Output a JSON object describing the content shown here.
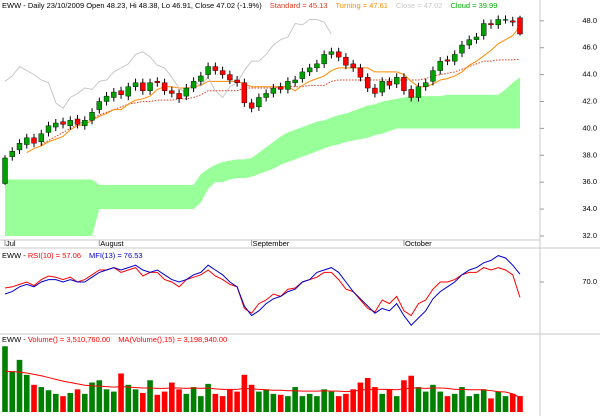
{
  "chart_data": [
    {
      "type": "candlestick",
      "title": "EWW - Daily 23/10/2009 Open 48.23, Hi 48.38, Lo 46.91, Close 47.02 (-1.9%)",
      "categories": [
        "Jul",
        null,
        null,
        null,
        null,
        null,
        null,
        null,
        null,
        null,
        null,
        null,
        null,
        "August",
        null,
        null,
        null,
        null,
        null,
        null,
        null,
        null,
        null,
        null,
        null,
        null,
        null,
        null,
        null,
        null,
        null,
        null,
        null,
        null,
        "September",
        null,
        null,
        null,
        null,
        null,
        null,
        null,
        null,
        null,
        null,
        null,
        null,
        null,
        null,
        null,
        null,
        null,
        null,
        null,
        null,
        "October",
        null,
        null,
        null,
        null,
        null,
        null,
        null,
        null,
        null,
        null,
        null,
        null,
        null,
        null,
        null,
        null
      ],
      "open": [
        35.9,
        37.9,
        38.4,
        38.8,
        39.3,
        39.0,
        39.7,
        40.1,
        40.5,
        40.2,
        40.7,
        40.2,
        40.6,
        41.4,
        42.0,
        42.3,
        42.8,
        42.4,
        43.1,
        43.4,
        42.8,
        43.5,
        43.4,
        42.8,
        42.6,
        42.4,
        43.0,
        43.5,
        44.0,
        44.6,
        44.3,
        44.0,
        43.6,
        43.4,
        41.9,
        41.6,
        42.3,
        42.6,
        43.1,
        42.9,
        43.4,
        43.7,
        44.2,
        44.5,
        44.8,
        45.5,
        45.7,
        45.3,
        44.8,
        44.5,
        43.8,
        43.0,
        42.7,
        43.5,
        43.3,
        43.8,
        42.9,
        42.3,
        43.1,
        43.5,
        44.3,
        45.1,
        45.0,
        45.6,
        46.2,
        46.6,
        46.9,
        47.8,
        47.7,
        48.1,
        48.0,
        48.23
      ],
      "high": [
        38.0,
        38.6,
        39.2,
        39.6,
        39.6,
        39.9,
        40.5,
        40.7,
        40.8,
        40.9,
        41.0,
        40.9,
        41.5,
        42.3,
        42.7,
        43.0,
        43.1,
        43.4,
        43.7,
        43.7,
        43.7,
        43.8,
        43.7,
        43.1,
        42.9,
        43.3,
        43.8,
        44.2,
        44.9,
        44.9,
        44.6,
        44.3,
        43.9,
        43.7,
        42.2,
        42.6,
        42.9,
        43.3,
        43.4,
        43.8,
        43.9,
        44.5,
        44.8,
        45.1,
        45.8,
        46.0,
        46.0,
        45.6,
        45.1,
        44.8,
        44.1,
        43.3,
        43.8,
        43.8,
        44.1,
        44.1,
        43.2,
        43.4,
        43.7,
        44.6,
        45.3,
        45.4,
        45.8,
        46.5,
        46.9,
        47.1,
        48.1,
        48.1,
        48.4,
        48.4,
        48.3,
        48.38
      ],
      "low": [
        35.8,
        37.6,
        38.1,
        38.5,
        38.6,
        38.7,
        39.4,
        39.8,
        40.0,
        39.9,
        40.0,
        39.9,
        40.3,
        41.1,
        41.7,
        42.0,
        42.2,
        42.1,
        42.8,
        42.5,
        42.5,
        43.1,
        42.5,
        42.3,
        41.9,
        42.1,
        42.7,
        43.2,
        43.7,
        44.0,
        43.7,
        43.3,
        43.1,
        41.6,
        41.2,
        41.3,
        42.0,
        42.3,
        42.6,
        42.6,
        43.1,
        43.4,
        43.9,
        44.2,
        44.5,
        45.2,
        45.0,
        44.4,
        44.2,
        43.5,
        42.7,
        42.3,
        42.4,
        42.9,
        43.0,
        42.5,
        42.0,
        42.0,
        42.8,
        43.2,
        44.0,
        44.7,
        44.7,
        45.3,
        45.9,
        46.3,
        46.6,
        47.4,
        47.4,
        47.8,
        47.6,
        46.91
      ],
      "close": [
        37.8,
        38.3,
        38.9,
        39.3,
        38.9,
        39.6,
        40.2,
        40.4,
        40.3,
        40.6,
        40.3,
        40.6,
        41.2,
        42.0,
        42.4,
        42.7,
        42.5,
        43.1,
        43.4,
        42.8,
        43.4,
        43.4,
        42.8,
        42.6,
        42.2,
        43.0,
        43.5,
        43.9,
        44.6,
        44.3,
        44.0,
        43.6,
        43.4,
        41.9,
        41.5,
        42.3,
        42.6,
        43.0,
        42.9,
        43.5,
        43.6,
        44.2,
        44.5,
        44.8,
        45.5,
        45.7,
        45.3,
        44.7,
        44.5,
        43.8,
        43.0,
        42.6,
        43.5,
        43.2,
        43.8,
        42.8,
        42.3,
        43.1,
        43.4,
        44.3,
        45.0,
        45.0,
        45.5,
        46.2,
        46.6,
        46.8,
        47.8,
        47.7,
        48.1,
        48.1,
        47.9,
        47.02
      ],
      "up_color": "#00a000",
      "down_color": "#ff0000",
      "series": [
        {
          "name": "Standard = 45.13",
          "color": "#e03c1e",
          "dashed": true,
          "values": [
            null,
            null,
            null,
            null,
            null,
            38.8,
            39.1,
            39.4,
            39.7,
            40.0,
            40.3,
            40.5,
            40.7,
            41.0,
            41.2,
            41.4,
            41.6,
            41.8,
            41.9,
            42.0,
            42.0,
            42.1,
            42.1,
            42.1,
            42.2,
            42.2,
            42.3,
            42.5,
            42.8,
            42.8,
            42.8,
            42.8,
            42.8,
            43.0,
            43.0,
            43.0,
            43.0,
            43.0,
            43.1,
            43.1,
            43.1,
            43.1,
            43.2,
            43.2,
            43.2,
            43.5,
            43.6,
            43.6,
            43.6,
            43.6,
            43.6,
            43.6,
            43.6,
            43.6,
            43.6,
            43.6,
            43.6,
            43.6,
            43.7,
            43.9,
            44.0,
            44.1,
            44.2,
            44.4,
            44.6,
            44.8,
            45.0,
            45.0,
            45.1,
            45.1,
            45.1,
            45.13
          ]
        },
        {
          "name": "Turning = 47.61",
          "color": "#ff8c00",
          "dashed": false,
          "values": [
            null,
            null,
            null,
            38.2,
            38.5,
            38.7,
            39.0,
            39.2,
            39.4,
            39.9,
            40.2,
            40.3,
            40.6,
            40.9,
            41.1,
            41.4,
            41.4,
            41.8,
            42.1,
            42.2,
            42.4,
            42.9,
            43.1,
            43.1,
            43.0,
            43.0,
            43.1,
            43.2,
            43.5,
            43.5,
            43.5,
            43.5,
            43.5,
            43.3,
            43.1,
            43.1,
            43.1,
            43.1,
            43.1,
            43.1,
            42.8,
            43.2,
            43.5,
            43.7,
            43.9,
            44.3,
            44.5,
            44.5,
            44.5,
            44.5,
            44.5,
            44.2,
            44.2,
            44.2,
            44.2,
            44.0,
            43.5,
            43.1,
            43.1,
            43.3,
            43.6,
            43.7,
            43.9,
            44.2,
            44.7,
            45.0,
            45.4,
            45.8,
            46.3,
            46.6,
            46.9,
            47.61
          ]
        },
        {
          "name": "Close = 47.02",
          "color": "#c8c8c8",
          "dashed": false,
          "values": [
            43.5,
            43.9,
            44.6,
            44.3,
            44.0,
            43.6,
            43.4,
            41.9,
            41.5,
            42.3,
            42.6,
            43.0,
            42.9,
            43.5,
            43.6,
            44.2,
            44.5,
            44.8,
            45.5,
            45.7,
            45.3,
            44.7,
            44.5,
            43.8,
            43.0,
            42.6,
            43.5,
            43.2,
            43.8,
            42.8,
            42.3,
            43.1,
            43.4,
            44.3,
            45.0,
            45.0,
            45.5,
            46.2,
            46.6,
            46.8,
            47.8,
            47.7,
            48.1,
            48.1,
            47.9,
            47.02,
            null,
            null,
            null,
            null,
            null,
            null,
            null,
            null,
            null,
            null,
            null,
            null,
            null,
            null,
            null,
            null,
            null,
            null,
            null,
            null,
            null,
            null,
            null,
            null,
            null,
            null
          ]
        }
      ],
      "cloud": {
        "name": "Cloud = 39.99",
        "color": "#99ff99",
        "label_color": "#00b000",
        "upper": [
          36.2,
          36.2,
          36.2,
          36.2,
          36.2,
          36.2,
          36.2,
          36.2,
          36.2,
          36.2,
          36.2,
          36.2,
          36.2,
          35.8,
          35.8,
          35.8,
          35.8,
          35.8,
          35.8,
          35.8,
          35.8,
          35.8,
          35.8,
          35.8,
          35.8,
          35.8,
          35.8,
          36.6,
          37.0,
          37.3,
          37.5,
          37.6,
          37.7,
          37.7,
          37.8,
          38.2,
          38.6,
          39.0,
          39.4,
          39.7,
          39.9,
          40.1,
          40.3,
          40.5,
          40.6,
          40.8,
          41.0,
          41.1,
          41.3,
          41.5,
          41.7,
          41.8,
          42.0,
          42.1,
          42.2,
          42.3,
          42.4,
          42.4,
          42.4,
          42.4,
          42.4,
          42.5,
          42.5,
          42.5,
          42.5,
          42.5,
          42.5,
          42.5,
          42.5,
          42.9,
          43.4,
          43.8
        ],
        "lower": [
          32.0,
          32.0,
          32.0,
          32.0,
          32.0,
          32.0,
          32.0,
          32.0,
          32.0,
          32.0,
          32.0,
          32.0,
          32.0,
          34.0,
          34.0,
          34.0,
          34.0,
          34.0,
          34.0,
          34.0,
          34.0,
          34.0,
          34.0,
          34.0,
          34.0,
          34.0,
          34.0,
          34.5,
          35.5,
          36.0,
          36.0,
          36.2,
          36.3,
          36.3,
          36.4,
          36.6,
          36.8,
          37.0,
          37.3,
          37.5,
          37.7,
          37.9,
          38.1,
          38.3,
          38.5,
          38.7,
          38.8,
          39.0,
          39.1,
          39.2,
          39.3,
          39.5,
          39.6,
          39.8,
          39.99,
          39.99,
          39.99,
          39.99,
          39.99,
          39.99,
          39.99,
          39.99,
          39.99,
          39.99,
          39.99,
          39.99,
          39.99,
          39.99,
          39.99,
          39.99,
          39.99,
          39.99
        ]
      },
      "ylim": [
        31.7,
        49.4
      ],
      "yticks": [
        {
          "value": 32,
          "label": "32.0"
        },
        {
          "value": 34,
          "label": "34.0"
        },
        {
          "value": 36,
          "label": "36.0"
        },
        {
          "value": 38,
          "label": "38.0"
        },
        {
          "value": 40,
          "label": "40.0"
        },
        {
          "value": 42,
          "label": "42.0"
        },
        {
          "value": 44,
          "label": "44.0"
        },
        {
          "value": 46,
          "label": "46.0"
        },
        {
          "value": 48,
          "label": "48.0"
        }
      ],
      "grid": false
    },
    {
      "type": "line",
      "title": "EWW - ",
      "series": [
        {
          "name": "RSI(10) = 57.06",
          "color": "#ff0000",
          "values": [
            65,
            66,
            68,
            70,
            67,
            72,
            75,
            74,
            72,
            74,
            70,
            72,
            76,
            80,
            80,
            82,
            78,
            80,
            82,
            75,
            78,
            78,
            72,
            70,
            66,
            72,
            74,
            76,
            80,
            75,
            72,
            68,
            66,
            48,
            44,
            52,
            55,
            60,
            58,
            64,
            65,
            70,
            72,
            74,
            78,
            78,
            72,
            64,
            62,
            55,
            48,
            45,
            55,
            52,
            58,
            46,
            42,
            52,
            55,
            64,
            70,
            70,
            72,
            76,
            78,
            78,
            82,
            80,
            82,
            80,
            76,
            57.06
          ]
        },
        {
          "name": "MFI(13) = 76.53",
          "color": "#0000cc",
          "values": [
            60,
            62,
            66,
            68,
            66,
            70,
            72,
            72,
            70,
            72,
            70,
            70,
            74,
            78,
            80,
            82,
            80,
            82,
            84,
            80,
            78,
            80,
            76,
            72,
            70,
            72,
            76,
            78,
            84,
            80,
            76,
            70,
            66,
            50,
            42,
            46,
            52,
            56,
            58,
            62,
            64,
            70,
            72,
            78,
            80,
            82,
            78,
            70,
            62,
            56,
            50,
            44,
            48,
            46,
            52,
            42,
            34,
            40,
            46,
            56,
            62,
            66,
            70,
            76,
            80,
            82,
            86,
            88,
            92,
            90,
            84,
            76.53
          ]
        }
      ],
      "ylim": [
        30,
        95
      ],
      "yticks": [
        {
          "value": 70,
          "label": "70.0"
        }
      ],
      "grid": false
    },
    {
      "type": "bar",
      "title": "EWW - ",
      "series": [
        {
          "name": "Volume() = 3,510,760.00",
          "up_color": "#008000",
          "down_color": "#ff0000",
          "values": [
            14500000,
            9000000,
            11500000,
            8200000,
            6000000,
            5500000,
            4800000,
            4000000,
            3500000,
            4200000,
            5000000,
            4000000,
            6500000,
            7000000,
            5000000,
            4500000,
            8500000,
            6000000,
            5000000,
            4200000,
            7000000,
            3800000,
            4500000,
            6500000,
            5000000,
            4000000,
            5500000,
            3500000,
            6200000,
            4000000,
            3500000,
            5000000,
            4500000,
            8200000,
            6000000,
            4500000,
            5000000,
            4000000,
            3800000,
            3500000,
            5500000,
            3500000,
            4000000,
            3500000,
            5000000,
            4500000,
            3500000,
            4000000,
            5000000,
            6500000,
            7500000,
            5500000,
            4000000,
            5000000,
            3500000,
            7000000,
            8000000,
            5500000,
            4500000,
            6000000,
            4500000,
            3500000,
            4000000,
            5500000,
            3500000,
            4000000,
            5000000,
            3000000,
            4500000,
            3500000,
            4000000,
            3510760
          ]
        },
        {
          "name": "MA(Volume(),15) = 3,198,940.00",
          "color": "#ff0000",
          "values": [
            9000000,
            8900000,
            8800000,
            8600000,
            8300000,
            8000000,
            7600000,
            7200000,
            6800000,
            6500000,
            6200000,
            5900000,
            5800000,
            5700000,
            5600000,
            5500000,
            5600000,
            5500000,
            5400000,
            5300000,
            5300000,
            5200000,
            5200000,
            5300000,
            5300000,
            5200000,
            5300000,
            5200000,
            5300000,
            5100000,
            5000000,
            5000000,
            5000000,
            5200000,
            5100000,
            5000000,
            4900000,
            4800000,
            4800000,
            4700000,
            4700000,
            4600000,
            4600000,
            4600000,
            4700000,
            4600000,
            4600000,
            4500000,
            4600000,
            4800000,
            5000000,
            5000000,
            5000000,
            5000000,
            4900000,
            5100000,
            5300000,
            5300000,
            5200000,
            5300000,
            5300000,
            5200000,
            5000000,
            5000000,
            4900000,
            4900000,
            4900000,
            4700000,
            4500000,
            4400000,
            4000000,
            3198940
          ]
        }
      ],
      "ylim": [
        0,
        15000000
      ],
      "yticks": [],
      "grid": false
    }
  ]
}
